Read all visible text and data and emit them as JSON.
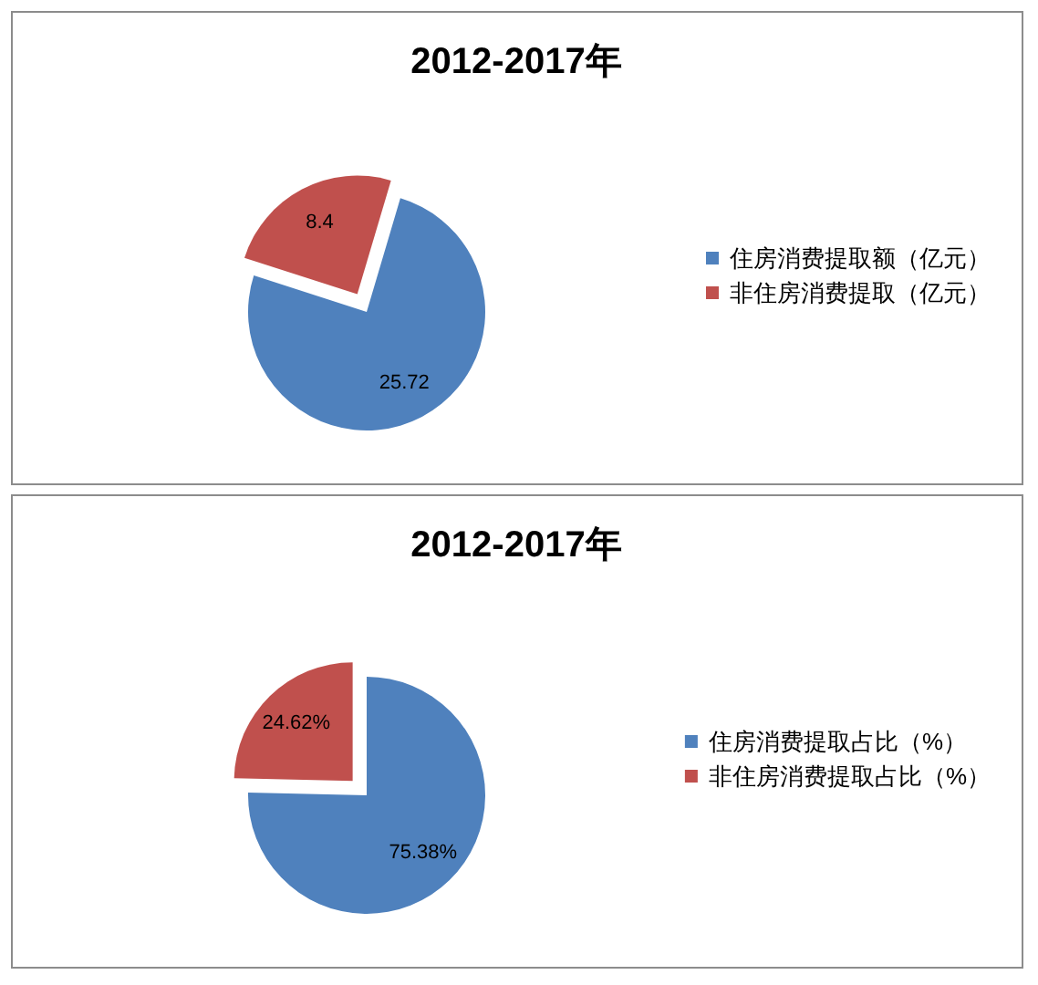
{
  "chart_data": [
    {
      "type": "pie",
      "title": "2012-2017年",
      "categories": [
        "住房消费提取额（亿元）",
        "非住房消费提取（亿元）"
      ],
      "values": [
        25.72,
        8.4
      ],
      "colors": [
        "#4f81bd",
        "#c0504d"
      ],
      "legend": "right",
      "data_labels": true
    },
    {
      "type": "pie",
      "title": "2012-2017年",
      "categories": [
        "住房消费提取占比（%）",
        "非住房消费提取占比（%）"
      ],
      "values": [
        75.38,
        24.62
      ],
      "colors": [
        "#4f81bd",
        "#c0504d"
      ],
      "legend": "right",
      "value_labels": [
        "75.38%",
        "24.62%"
      ]
    }
  ]
}
